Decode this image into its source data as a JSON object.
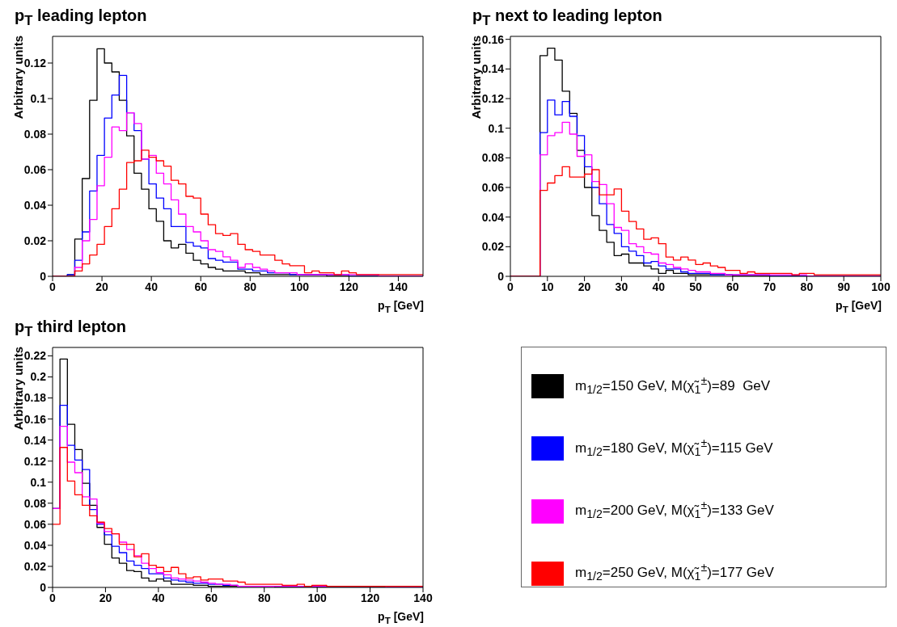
{
  "chart_data": [
    {
      "type": "histogram",
      "title": "p$_{T}$ leading lepton",
      "xlabel": "p$_{T}$ [GeV]",
      "ylabel": "Arbitrary units",
      "xlim": [
        0,
        150
      ],
      "ylim": [
        0,
        0.135
      ],
      "xticks": [
        0,
        20,
        40,
        60,
        80,
        100,
        120,
        140
      ],
      "yticks": [
        0,
        0.02,
        0.04,
        0.06,
        0.08,
        0.1,
        0.12
      ],
      "bins": [
        0,
        3,
        6,
        9,
        12,
        15,
        18,
        21,
        24,
        27,
        30,
        33,
        36,
        39,
        42,
        45,
        48,
        51,
        54,
        57,
        60,
        63,
        66,
        69,
        72,
        75,
        78,
        81,
        84,
        87,
        90,
        93,
        96,
        99,
        102,
        105,
        108,
        111,
        114,
        117,
        120,
        123,
        126,
        129,
        132,
        135,
        138,
        141,
        144,
        147,
        150
      ],
      "series": [
        {
          "color": "#000000",
          "values": [
            0,
            0,
            0.001,
            0.021,
            0.055,
            0.099,
            0.128,
            0.12,
            0.115,
            0.099,
            0.079,
            0.058,
            0.049,
            0.038,
            0.031,
            0.02,
            0.016,
            0.018,
            0.013,
            0.009,
            0.007,
            0.005,
            0.004,
            0.003,
            0.003,
            0.003,
            0.002,
            0.002,
            0.001,
            0.001,
            0.001,
            0.001,
            0.001,
            0.001,
            0.001,
            0.001,
            0.001,
            0,
            0,
            0,
            0,
            0,
            0,
            0,
            0,
            0,
            0,
            0,
            0,
            0
          ]
        },
        {
          "color": "#0000ff",
          "values": [
            0,
            0,
            0.001,
            0.009,
            0.025,
            0.048,
            0.068,
            0.089,
            0.102,
            0.113,
            0.092,
            0.082,
            0.066,
            0.052,
            0.044,
            0.038,
            0.028,
            0.028,
            0.019,
            0.017,
            0.016,
            0.01,
            0.009,
            0.008,
            0.008,
            0.004,
            0.004,
            0.003,
            0.003,
            0.002,
            0.002,
            0.002,
            0.001,
            0.001,
            0.001,
            0.001,
            0.001,
            0.001,
            0.001,
            0.001,
            0,
            0,
            0,
            0,
            0,
            0,
            0,
            0,
            0,
            0
          ]
        },
        {
          "color": "#ff00ff",
          "values": [
            0,
            0,
            0,
            0.005,
            0.02,
            0.032,
            0.051,
            0.067,
            0.084,
            0.082,
            0.092,
            0.086,
            0.066,
            0.068,
            0.058,
            0.052,
            0.043,
            0.035,
            0.028,
            0.025,
            0.02,
            0.015,
            0.014,
            0.011,
            0.009,
            0.005,
            0.007,
            0.005,
            0.004,
            0.003,
            0.002,
            0.002,
            0.002,
            0.001,
            0.001,
            0.001,
            0.001,
            0.001,
            0.001,
            0.001,
            0.001,
            0.001,
            0.001,
            0.001,
            0,
            0,
            0,
            0,
            0,
            0
          ]
        },
        {
          "color": "#ff0000",
          "values": [
            0,
            0,
            0,
            0.003,
            0.007,
            0.012,
            0.018,
            0.028,
            0.038,
            0.049,
            0.064,
            0.065,
            0.071,
            0.067,
            0.065,
            0.062,
            0.054,
            0.052,
            0.045,
            0.044,
            0.035,
            0.029,
            0.024,
            0.023,
            0.024,
            0.018,
            0.015,
            0.014,
            0.012,
            0.012,
            0.009,
            0.007,
            0.006,
            0.006,
            0.002,
            0.003,
            0.002,
            0.002,
            0.001,
            0.003,
            0.002,
            0.001,
            0.001,
            0.001,
            0.001,
            0.001,
            0.001,
            0.001,
            0.001,
            0.001
          ]
        }
      ]
    },
    {
      "type": "histogram",
      "title": "p$_{T}$ next to leading lepton",
      "xlabel": "p$_{T}$ [GeV]",
      "ylabel": "Arbitrary units",
      "xlim": [
        0,
        100
      ],
      "ylim": [
        0,
        0.162
      ],
      "xticks": [
        0,
        10,
        20,
        30,
        40,
        50,
        60,
        70,
        80,
        90,
        100
      ],
      "yticks": [
        0,
        0.02,
        0.04,
        0.06,
        0.08,
        0.1,
        0.12,
        0.14,
        0.16
      ],
      "bins": [
        0,
        2,
        4,
        6,
        8,
        10,
        12,
        14,
        16,
        18,
        20,
        22,
        24,
        26,
        28,
        30,
        32,
        34,
        36,
        38,
        40,
        42,
        44,
        46,
        48,
        50,
        52,
        54,
        56,
        58,
        60,
        62,
        64,
        66,
        68,
        70,
        72,
        74,
        76,
        78,
        80,
        82,
        84,
        86,
        88,
        90,
        92,
        94,
        96,
        98,
        100
      ],
      "series": [
        {
          "color": "#000000",
          "values": [
            0,
            0,
            0,
            0,
            0.149,
            0.154,
            0.146,
            0.125,
            0.11,
            0.085,
            0.06,
            0.041,
            0.031,
            0.023,
            0.014,
            0.015,
            0.009,
            0.009,
            0.007,
            0.005,
            0.002,
            0.004,
            0.002,
            0.002,
            0.001,
            0.001,
            0.001,
            0.001,
            0.001,
            0.001,
            0,
            0,
            0,
            0,
            0,
            0,
            0,
            0,
            0,
            0,
            0,
            0,
            0,
            0,
            0,
            0,
            0,
            0,
            0,
            0
          ]
        },
        {
          "color": "#0000ff",
          "values": [
            0,
            0,
            0,
            0,
            0.097,
            0.119,
            0.109,
            0.118,
            0.108,
            0.095,
            0.074,
            0.06,
            0.049,
            0.035,
            0.029,
            0.02,
            0.017,
            0.014,
            0.009,
            0.01,
            0.007,
            0.005,
            0.005,
            0.003,
            0.002,
            0.002,
            0.002,
            0.001,
            0.001,
            0.001,
            0.001,
            0.001,
            0.001,
            0.001,
            0.001,
            0,
            0,
            0,
            0,
            0,
            0,
            0,
            0,
            0,
            0,
            0,
            0,
            0,
            0,
            0
          ]
        },
        {
          "color": "#ff00ff",
          "values": [
            0,
            0,
            0,
            0,
            0.082,
            0.095,
            0.097,
            0.104,
            0.096,
            0.081,
            0.082,
            0.064,
            0.062,
            0.049,
            0.033,
            0.031,
            0.022,
            0.02,
            0.016,
            0.015,
            0.009,
            0.008,
            0.006,
            0.005,
            0.004,
            0.003,
            0.003,
            0.002,
            0.002,
            0.001,
            0.001,
            0.001,
            0.001,
            0.001,
            0.001,
            0.001,
            0.001,
            0.001,
            0.001,
            0.001,
            0,
            0,
            0,
            0,
            0,
            0,
            0,
            0,
            0,
            0
          ]
        },
        {
          "color": "#ff0000",
          "values": [
            0,
            0,
            0,
            0,
            0.058,
            0.063,
            0.068,
            0.074,
            0.067,
            0.067,
            0.069,
            0.072,
            0.055,
            0.055,
            0.059,
            0.044,
            0.037,
            0.032,
            0.025,
            0.026,
            0.022,
            0.013,
            0.011,
            0.013,
            0.011,
            0.008,
            0.009,
            0.007,
            0.006,
            0.004,
            0.004,
            0.002,
            0.003,
            0.002,
            0.002,
            0.002,
            0.002,
            0.002,
            0.001,
            0.002,
            0.002,
            0.001,
            0.001,
            0.001,
            0.001,
            0.001,
            0.001,
            0.001,
            0.001,
            0.001
          ]
        }
      ]
    },
    {
      "type": "histogram",
      "title": "p$_{T}$ third lepton",
      "xlabel": "p$_{T}$ [GeV]",
      "ylabel": "Arbitrary units",
      "xlim": [
        0,
        140
      ],
      "ylim": [
        0,
        0.228
      ],
      "xticks": [
        0,
        20,
        40,
        60,
        80,
        100,
        120,
        140
      ],
      "yticks": [
        0,
        0.02,
        0.04,
        0.06,
        0.08,
        0.1,
        0.12,
        0.14,
        0.16,
        0.18,
        0.2,
        0.22
      ],
      "legend": "right",
      "bins": [
        0,
        2.8,
        5.6,
        8.4,
        11.2,
        14,
        16.8,
        19.6,
        22.4,
        25.2,
        28,
        30.8,
        33.6,
        36.4,
        39.2,
        42,
        44.8,
        47.6,
        50.4,
        53.2,
        56,
        58.8,
        61.6,
        64.4,
        67.2,
        70,
        72.8,
        75.6,
        78.4,
        81.2,
        84,
        86.8,
        89.6,
        92.4,
        95.2,
        98,
        100.8,
        103.6,
        106.4,
        109.2,
        112,
        114.8,
        117.6,
        120.4,
        123.2,
        126,
        128.8,
        131.6,
        134.4,
        137.2,
        140
      ],
      "series": [
        {
          "name": "m$_{1/2}$=150 GeV, M(χ̃$_{1}$$^{±}$)=89  GeV",
          "color": "#000000",
          "values": [
            0.075,
            0.217,
            0.155,
            0.131,
            0.099,
            0.078,
            0.057,
            0.041,
            0.028,
            0.023,
            0.016,
            0.015,
            0.009,
            0.006,
            0.008,
            0.006,
            0.003,
            0.003,
            0.003,
            0.002,
            0.002,
            0.001,
            0.001,
            0.001,
            0.001,
            0.001,
            0.001,
            0.001,
            0.001,
            0.001,
            0,
            0,
            0,
            0,
            0,
            0,
            0,
            0,
            0,
            0,
            0,
            0,
            0,
            0,
            0,
            0,
            0,
            0,
            0,
            0
          ]
        },
        {
          "name": "m$_{1/2}$=180 GeV, M(χ̃$_{1}$$^{±}$)=115 GeV",
          "color": "#0000ff",
          "values": [
            0.075,
            0.173,
            0.135,
            0.121,
            0.112,
            0.074,
            0.06,
            0.05,
            0.039,
            0.033,
            0.025,
            0.021,
            0.018,
            0.013,
            0.013,
            0.009,
            0.007,
            0.006,
            0.005,
            0.004,
            0.004,
            0.003,
            0.003,
            0.002,
            0.002,
            0.001,
            0.001,
            0.001,
            0.001,
            0.001,
            0.001,
            0.001,
            0.001,
            0.001,
            0.001,
            0.001,
            0.001,
            0.001,
            0.001,
            0.001,
            0.001,
            0.001,
            0.001,
            0.001,
            0.001,
            0,
            0,
            0,
            0,
            0
          ]
        },
        {
          "name": "m$_{1/2}$=200 GeV, M(χ̃$_{1}$$^{±}$)=133 GeV",
          "color": "#ff00ff",
          "values": [
            0.075,
            0.153,
            0.119,
            0.109,
            0.086,
            0.084,
            0.061,
            0.053,
            0.051,
            0.043,
            0.036,
            0.03,
            0.023,
            0.018,
            0.014,
            0.012,
            0.009,
            0.008,
            0.007,
            0.006,
            0.005,
            0.004,
            0.003,
            0.003,
            0.002,
            0.001,
            0.001,
            0.001,
            0.001,
            0.001,
            0.001,
            0.001,
            0.001,
            0.001,
            0.001,
            0.001,
            0.001,
            0.001,
            0.001,
            0.001,
            0.001,
            0.001,
            0.001,
            0.001,
            0.001,
            0,
            0,
            0,
            0,
            0
          ]
        },
        {
          "name": "m$_{1/2}$=250 GeV, M(χ̃$_{1}$$^{±}$)=177 GeV",
          "color": "#ff0000",
          "values": [
            0.06,
            0.133,
            0.101,
            0.088,
            0.078,
            0.068,
            0.062,
            0.056,
            0.051,
            0.041,
            0.041,
            0.029,
            0.032,
            0.021,
            0.019,
            0.015,
            0.019,
            0.013,
            0.009,
            0.01,
            0.007,
            0.008,
            0.008,
            0.006,
            0.006,
            0.005,
            0.003,
            0.003,
            0.003,
            0.003,
            0.003,
            0.002,
            0.002,
            0.003,
            0.001,
            0.002,
            0.002,
            0.001,
            0.001,
            0.001,
            0.001,
            0.001,
            0.001,
            0.001,
            0.001,
            0.001,
            0.001,
            0.001,
            0.001,
            0.001
          ]
        }
      ]
    }
  ]
}
